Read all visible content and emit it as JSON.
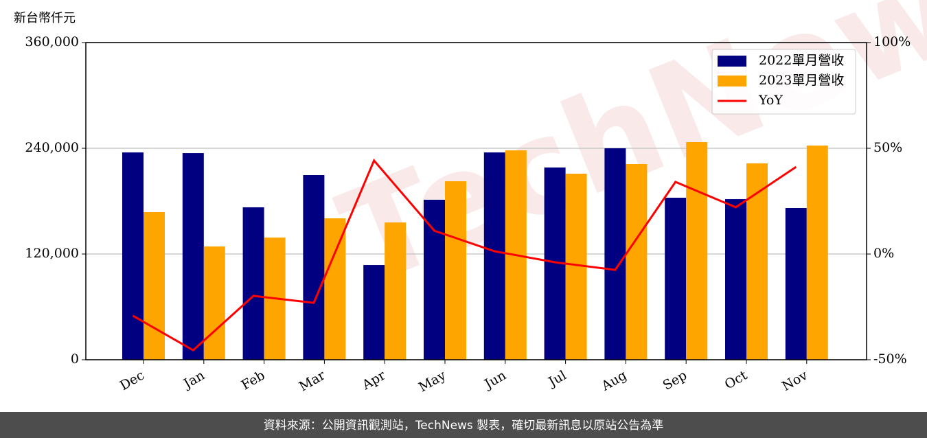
{
  "chart_data": {
    "type": "bar_line",
    "y_label": "新台幣仟元",
    "watermark": "TechNews",
    "footer": "資料來源：公開資訊觀測站，TechNews 製表，確切最新訊息以原站公告為準",
    "categories": [
      "Dec",
      "Jan",
      "Feb",
      "Mar",
      "Apr",
      "May",
      "Jun",
      "Jul",
      "Aug",
      "Sep",
      "Oct",
      "Nov"
    ],
    "series": [
      {
        "name": "2022單月營收",
        "color": "#000080",
        "type": "bar",
        "values": [
          235300,
          234500,
          173000,
          209600,
          107500,
          181600,
          235300,
          218200,
          240000,
          183900,
          182300,
          172200
        ]
      },
      {
        "name": "2023單月營收",
        "color": "#ffa500",
        "type": "bar",
        "values": [
          167500,
          128600,
          138700,
          160500,
          155800,
          202600,
          237700,
          211200,
          222100,
          247000,
          222900,
          243100
        ]
      },
      {
        "name": "YoY",
        "color": "#ff0000",
        "type": "line",
        "axis": "y2",
        "values": [
          -29.2,
          -45.5,
          -19.8,
          -23.1,
          44.2,
          11.0,
          1.3,
          -3.9,
          -7.5,
          34.1,
          22.1,
          41.2
        ]
      }
    ],
    "ylim": [
      0,
      360000
    ],
    "yticks": [
      0,
      {
        "value": 120000,
        "label": "120,000"
      },
      {
        "value": 240000,
        "label": "240,000"
      },
      {
        "value": 360000,
        "label": "360,000"
      }
    ],
    "y2lim": [
      -50,
      100
    ],
    "y2ticks": [
      {
        "value": -50,
        "label": "-50%"
      },
      {
        "value": 0,
        "label": "0%"
      },
      {
        "value": 50,
        "label": "50%"
      },
      {
        "value": 100,
        "label": "100%"
      }
    ],
    "grid": true,
    "legend": "upper right"
  }
}
